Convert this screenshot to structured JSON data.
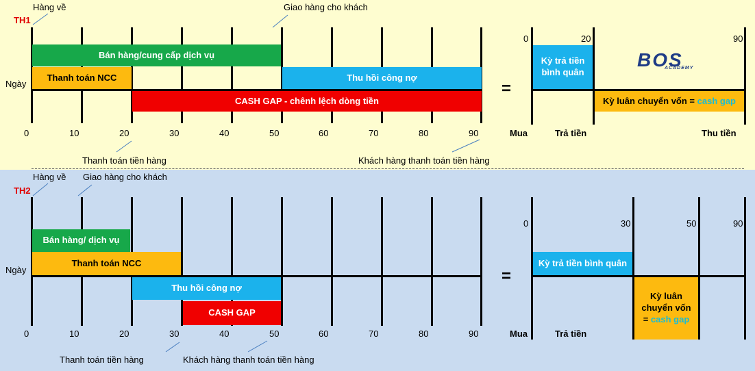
{
  "th1": {
    "label": "TH1",
    "hang_ve": "Hàng về",
    "giao_hang": "Giao hàng cho khách",
    "ngay": "Ngày",
    "bars": {
      "ban_hang": "Bán hàng/cung cấp dịch vụ",
      "thanh_toan_ncc": "Thanh toán NCC",
      "thu_hoi": "Thu hồi công nợ",
      "cash_gap": "CASH GAP - chênh lệch dòng tiền"
    },
    "ticks": [
      "0",
      "10",
      "20",
      "30",
      "40",
      "50",
      "60",
      "70",
      "80",
      "90"
    ],
    "thanh_toan_tien_hang": "Thanh toán tiền hàng",
    "khach_hang_tt": "Khách hàng thanh toán tiền hàng",
    "equals": "=",
    "right": {
      "top_ticks": [
        "0",
        "20",
        "90"
      ],
      "ky_tra_tien": "Kỳ trả tiền bình quân",
      "ky_luan_chuyen": "Kỳ luân chuyển vốn =",
      "cash_gap": "cash gap",
      "mua": "Mua",
      "tra_tien": "Trả tiền",
      "thu_tien": "Thu tiền"
    },
    "logo_main": "BOS",
    "logo_sub": "ACADEMY"
  },
  "th2": {
    "label": "TH2",
    "hang_ve": "Hàng về",
    "giao_hang": "Giao hàng cho khách",
    "ngay": "Ngày",
    "bars": {
      "ban_hang": "Bán hàng/ dịch vụ",
      "thanh_toan_ncc": "Thanh toán NCC",
      "thu_hoi": "Thu hồi công nợ",
      "cash_gap": "CASH GAP"
    },
    "ticks": [
      "0",
      "10",
      "20",
      "30",
      "40",
      "50",
      "60",
      "70",
      "80",
      "90"
    ],
    "thanh_toan_tien_hang": "Thanh toán tiền hàng",
    "khach_hang_tt": "Khách hàng thanh toán tiền hàng",
    "equals": "=",
    "right": {
      "top_ticks": [
        "0",
        "30",
        "50",
        "90"
      ],
      "ky_tra_tien": "Kỳ trả tiền bình quân",
      "ky_luan_chuyen_1": "Kỳ luân",
      "ky_luan_chuyen_2": "chuyển vốn",
      "ky_luan_chuyen_3": "=",
      "cash_gap": "cash gap",
      "mua": "Mua",
      "tra_tien": "Trả tiền"
    }
  },
  "colors": {
    "green": "#17A84A",
    "orange": "#FDBA0F",
    "cyan": "#1BB2EC",
    "red": "#F00000",
    "panel1": "#FEFDD0",
    "panel2": "#C9DBF0",
    "logo": "#1F3C86"
  }
}
